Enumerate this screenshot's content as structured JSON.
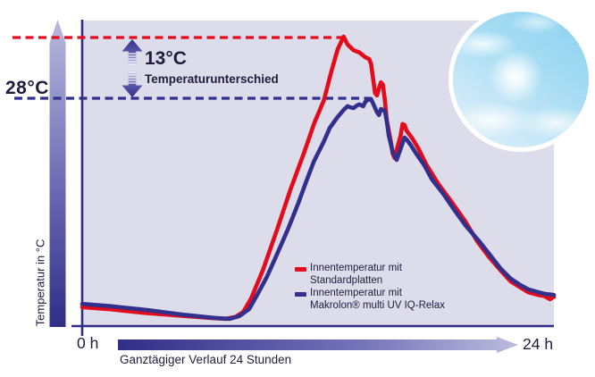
{
  "annotations": {
    "left_temp_label": "28°C",
    "difference_value": "13°C",
    "difference_label": "Temperaturunterschied"
  },
  "axes": {
    "y_label": "Temperatur in °C",
    "x_start_label": "0 h",
    "x_end_label": "24 h",
    "x_caption": "Ganztägiger Verlauf 24 Stunden"
  },
  "legend": [
    {
      "line1": "Innentemperatur mit",
      "line2": "Standardplatten",
      "color": "#e30b1c"
    },
    {
      "line1": "Innentemperatur mit",
      "line2": "Makrolon® multi UV IQ-Relax",
      "color": "#32308c"
    }
  ],
  "colors": {
    "plot_background": "#dcdcea",
    "red_series": "#e30b1c",
    "blue_series": "#32308c",
    "axis": "#2f2d86",
    "text": "#201c3e",
    "gradient_dark": "#302e86",
    "gradient_light": "#b9b9dd"
  },
  "chart_data": {
    "type": "line",
    "title": "",
    "xlabel": "Ganztägiger Verlauf 24 Stunden",
    "ylabel": "Temperatur in °C",
    "units": {
      "x": "h",
      "y": "°C"
    },
    "x_range": [
      0,
      24
    ],
    "grid": false,
    "legend_position": "bottom-center-inside",
    "reference_lines": [
      {
        "value_c": 41,
        "style": "dashed",
        "color": "#e30b1c"
      },
      {
        "value_c": 28,
        "style": "dashed",
        "color": "#32308c",
        "label": "28°C"
      }
    ],
    "difference_annotation": {
      "text": "13°C Temperaturunterschied",
      "between_c": [
        28,
        41
      ]
    },
    "series": [
      {
        "name": "Innentemperatur mit Standardplatten",
        "color": "#e30b1c",
        "peak_c": 41,
        "points": [
          [
            0,
            -16.7
          ],
          [
            1.3,
            -17.1
          ],
          [
            3.1,
            -17.9
          ],
          [
            4.9,
            -18.5
          ],
          [
            6.5,
            -19.0
          ],
          [
            7.3,
            -19.2
          ],
          [
            7.8,
            -18.8
          ],
          [
            8.2,
            -17.7
          ],
          [
            8.6,
            -14.8
          ],
          [
            9.2,
            -8.7
          ],
          [
            9.9,
            -0.3
          ],
          [
            10.6,
            8.5
          ],
          [
            11.3,
            16.5
          ],
          [
            11.8,
            22.6
          ],
          [
            12.3,
            27.6
          ],
          [
            12.7,
            34.1
          ],
          [
            13.0,
            38.5
          ],
          [
            13.3,
            41.2
          ],
          [
            13.5,
            39.5
          ],
          [
            13.8,
            38.3
          ],
          [
            14.1,
            37.8
          ],
          [
            14.4,
            36.8
          ],
          [
            14.6,
            36.4
          ],
          [
            14.7,
            35.3
          ],
          [
            14.8,
            32.2
          ],
          [
            14.9,
            29.1
          ],
          [
            15.0,
            28.6
          ],
          [
            15.1,
            30.1
          ],
          [
            15.2,
            31.4
          ],
          [
            15.3,
            30.9
          ],
          [
            15.4,
            27.6
          ],
          [
            15.5,
            23.2
          ],
          [
            15.7,
            18.8
          ],
          [
            15.8,
            16.1
          ],
          [
            15.9,
            15.2
          ],
          [
            16.0,
            16.9
          ],
          [
            16.2,
            20.0
          ],
          [
            16.3,
            22.5
          ],
          [
            16.4,
            22.3
          ],
          [
            16.5,
            21.1
          ],
          [
            16.8,
            19.4
          ],
          [
            17.1,
            17.3
          ],
          [
            17.5,
            13.9
          ],
          [
            18.1,
            9.8
          ],
          [
            18.8,
            5.8
          ],
          [
            19.5,
            1.6
          ],
          [
            20.1,
            -2.6
          ],
          [
            20.7,
            -6.0
          ],
          [
            21.3,
            -8.9
          ],
          [
            21.8,
            -11.2
          ],
          [
            22.3,
            -12.5
          ],
          [
            22.7,
            -13.5
          ],
          [
            23.2,
            -14.1
          ],
          [
            23.5,
            -14.3
          ],
          [
            23.8,
            -15.0
          ],
          [
            24,
            -14.5
          ]
        ]
      },
      {
        "name": "Innentemperatur mit Makrolon® multi UV IQ-Relax",
        "color": "#32308c",
        "peak_c": 28,
        "points": [
          [
            0,
            -16.0
          ],
          [
            1.5,
            -16.5
          ],
          [
            3.3,
            -17.3
          ],
          [
            5.1,
            -18.3
          ],
          [
            6.7,
            -19.0
          ],
          [
            7.5,
            -19.2
          ],
          [
            8.0,
            -18.6
          ],
          [
            8.5,
            -17.1
          ],
          [
            8.9,
            -14.1
          ],
          [
            9.4,
            -10.2
          ],
          [
            9.9,
            -5.5
          ],
          [
            10.5,
            0.3
          ],
          [
            11.0,
            5.6
          ],
          [
            11.4,
            10.2
          ],
          [
            11.8,
            14.6
          ],
          [
            12.3,
            18.8
          ],
          [
            12.6,
            21.7
          ],
          [
            13.0,
            24.0
          ],
          [
            13.3,
            25.5
          ],
          [
            13.5,
            26.3
          ],
          [
            13.6,
            26.1
          ],
          [
            13.8,
            25.9
          ],
          [
            14.0,
            26.5
          ],
          [
            14.1,
            26.7
          ],
          [
            14.3,
            26.3
          ],
          [
            14.4,
            27.2
          ],
          [
            14.5,
            27.6
          ],
          [
            14.7,
            27.8
          ],
          [
            14.8,
            26.9
          ],
          [
            15.0,
            25.0
          ],
          [
            15.1,
            24.4
          ],
          [
            15.2,
            25.7
          ],
          [
            15.4,
            25.3
          ],
          [
            15.5,
            23.0
          ],
          [
            15.6,
            20.0
          ],
          [
            15.8,
            16.5
          ],
          [
            16.0,
            14.8
          ],
          [
            16.1,
            16.0
          ],
          [
            16.3,
            18.4
          ],
          [
            16.4,
            19.6
          ],
          [
            16.5,
            19.2
          ],
          [
            16.7,
            18.1
          ],
          [
            17.0,
            16.1
          ],
          [
            17.4,
            13.7
          ],
          [
            17.8,
            10.6
          ],
          [
            18.4,
            7.4
          ],
          [
            18.9,
            4.3
          ],
          [
            19.5,
            0.8
          ],
          [
            20.2,
            -2.6
          ],
          [
            20.8,
            -5.8
          ],
          [
            21.3,
            -8.5
          ],
          [
            21.8,
            -10.6
          ],
          [
            22.3,
            -12.0
          ],
          [
            22.7,
            -12.9
          ],
          [
            23.2,
            -13.5
          ],
          [
            23.6,
            -13.9
          ],
          [
            24,
            -14.1
          ]
        ]
      }
    ]
  }
}
